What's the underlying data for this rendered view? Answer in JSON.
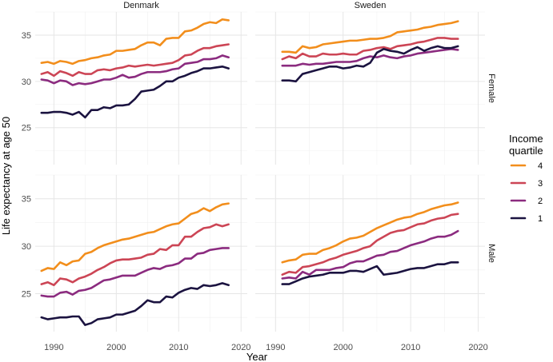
{
  "chart_data": {
    "type": "line",
    "facet_columns": [
      "Denmark",
      "Sweden"
    ],
    "facet_rows": [
      "Female",
      "Male"
    ],
    "xlabel": "Year",
    "ylabel": "Life expectancy at age 50",
    "xlim": [
      1987,
      2021
    ],
    "ylim": [
      21,
      37.5
    ],
    "x_ticks": [
      1990,
      2000,
      2010,
      2020
    ],
    "y_ticks": [
      25,
      30,
      35
    ],
    "grid": true,
    "legend": {
      "title": [
        "Income",
        "quartile"
      ],
      "position": "right",
      "entries": [
        {
          "label": "4",
          "color": "#f28e1c"
        },
        {
          "label": "3",
          "color": "#cc4555"
        },
        {
          "label": "2",
          "color": "#8b2b7f"
        },
        {
          "label": "1",
          "color": "#1b1340"
        }
      ]
    },
    "panels": [
      {
        "column": "Denmark",
        "row": "Female",
        "x": [
          1988,
          1989,
          1990,
          1991,
          1992,
          1993,
          1994,
          1995,
          1996,
          1997,
          1998,
          1999,
          2000,
          2001,
          2002,
          2003,
          2004,
          2005,
          2006,
          2007,
          2008,
          2009,
          2010,
          2011,
          2012,
          2013,
          2014,
          2015,
          2016,
          2017,
          2018
        ],
        "series": [
          {
            "name": "4",
            "color": "#f28e1c",
            "values": [
              32.0,
              32.1,
              31.9,
              32.2,
              32.1,
              31.9,
              32.2,
              32.3,
              32.5,
              32.6,
              32.8,
              32.9,
              33.3,
              33.3,
              33.4,
              33.5,
              33.9,
              34.2,
              34.2,
              33.9,
              34.6,
              34.7,
              34.7,
              35.4,
              35.5,
              35.8,
              36.2,
              36.4,
              36.3,
              36.7,
              36.6
            ]
          },
          {
            "name": "3",
            "color": "#cc4555",
            "values": [
              30.8,
              31.0,
              30.6,
              31.1,
              30.9,
              30.6,
              31.0,
              30.8,
              30.8,
              31.2,
              31.3,
              31.2,
              31.4,
              31.5,
              31.7,
              31.6,
              31.7,
              31.8,
              31.7,
              31.8,
              31.9,
              32.0,
              32.3,
              32.8,
              32.9,
              33.3,
              33.6,
              33.6,
              33.8,
              33.9,
              34.0
            ]
          },
          {
            "name": "2",
            "color": "#8b2b7f",
            "values": [
              30.2,
              30.1,
              29.8,
              30.1,
              30.0,
              29.6,
              29.8,
              29.7,
              29.8,
              30.0,
              30.2,
              30.2,
              30.4,
              30.7,
              30.4,
              30.5,
              30.8,
              31.0,
              31.0,
              31.0,
              31.1,
              31.3,
              31.4,
              31.9,
              32.0,
              32.1,
              32.4,
              32.4,
              32.5,
              32.8,
              32.6
            ]
          },
          {
            "name": "1",
            "color": "#1b1340",
            "values": [
              26.6,
              26.6,
              26.7,
              26.7,
              26.6,
              26.4,
              26.7,
              26.1,
              26.9,
              26.9,
              27.2,
              27.1,
              27.4,
              27.4,
              27.5,
              28.1,
              28.9,
              29.0,
              29.1,
              29.5,
              30.0,
              30.0,
              30.4,
              30.6,
              30.9,
              31.1,
              31.4,
              31.4,
              31.5,
              31.6,
              31.4
            ]
          }
        ]
      },
      {
        "column": "Sweden",
        "row": "Female",
        "x": [
          1991,
          1992,
          1993,
          1994,
          1995,
          1996,
          1997,
          1998,
          1999,
          2000,
          2001,
          2002,
          2003,
          2004,
          2005,
          2006,
          2007,
          2008,
          2009,
          2010,
          2011,
          2012,
          2013,
          2014,
          2015,
          2016,
          2017
        ],
        "series": [
          {
            "name": "4",
            "color": "#f28e1c",
            "values": [
              33.2,
              33.2,
              33.1,
              33.8,
              33.6,
              33.7,
              34.0,
              34.1,
              34.2,
              34.3,
              34.4,
              34.4,
              34.5,
              34.6,
              34.6,
              34.7,
              34.9,
              35.3,
              35.4,
              35.5,
              35.6,
              35.8,
              35.9,
              36.1,
              36.2,
              36.3,
              36.5
            ]
          },
          {
            "name": "3",
            "color": "#cc4555",
            "values": [
              32.4,
              32.7,
              32.5,
              33.0,
              32.7,
              32.7,
              33.0,
              32.9,
              32.9,
              33.0,
              32.9,
              32.9,
              33.3,
              33.4,
              33.6,
              33.7,
              33.5,
              33.8,
              33.9,
              34.0,
              34.2,
              34.3,
              34.5,
              34.7,
              34.7,
              34.6,
              34.6
            ]
          },
          {
            "name": "2",
            "color": "#8b2b7f",
            "values": [
              31.7,
              31.7,
              31.7,
              31.9,
              31.8,
              31.9,
              31.9,
              32.0,
              32.1,
              32.1,
              32.1,
              32.2,
              32.5,
              32.7,
              32.6,
              32.8,
              32.6,
              32.5,
              32.7,
              32.8,
              33.0,
              33.1,
              33.2,
              33.3,
              33.4,
              33.5,
              33.4
            ]
          },
          {
            "name": "1",
            "color": "#1b1340",
            "values": [
              30.1,
              30.1,
              30.0,
              30.8,
              31.0,
              31.2,
              31.4,
              31.6,
              31.6,
              31.4,
              31.5,
              31.7,
              31.6,
              32.0,
              33.1,
              33.5,
              33.3,
              33.2,
              33.0,
              33.4,
              33.7,
              33.3,
              33.6,
              33.8,
              33.6,
              33.6,
              33.8
            ]
          }
        ]
      },
      {
        "column": "Denmark",
        "row": "Male",
        "x": [
          1988,
          1989,
          1990,
          1991,
          1992,
          1993,
          1994,
          1995,
          1996,
          1997,
          1998,
          1999,
          2000,
          2001,
          2002,
          2003,
          2004,
          2005,
          2006,
          2007,
          2008,
          2009,
          2010,
          2011,
          2012,
          2013,
          2014,
          2015,
          2016,
          2017,
          2018
        ],
        "series": [
          {
            "name": "4",
            "color": "#f28e1c",
            "values": [
              27.4,
              27.7,
              27.6,
              28.3,
              28.0,
              28.4,
              28.5,
              29.2,
              29.4,
              29.8,
              30.1,
              30.3,
              30.5,
              30.7,
              30.8,
              31.0,
              31.2,
              31.4,
              31.5,
              31.8,
              32.1,
              32.3,
              32.4,
              32.9,
              33.4,
              33.6,
              34.0,
              33.7,
              34.1,
              34.4,
              34.5
            ]
          },
          {
            "name": "3",
            "color": "#cc4555",
            "values": [
              26.0,
              26.2,
              25.9,
              26.6,
              26.5,
              26.2,
              26.6,
              26.8,
              27.1,
              27.5,
              27.8,
              28.2,
              28.5,
              28.6,
              28.6,
              28.7,
              28.8,
              29.1,
              29.2,
              29.7,
              29.6,
              30.1,
              30.1,
              31.0,
              31.0,
              31.5,
              31.9,
              32.0,
              32.3,
              32.1,
              32.3
            ]
          },
          {
            "name": "2",
            "color": "#8b2b7f",
            "values": [
              24.8,
              24.7,
              24.7,
              25.1,
              25.2,
              24.9,
              25.3,
              25.4,
              25.6,
              26.0,
              26.4,
              26.5,
              26.7,
              26.9,
              26.9,
              26.9,
              27.2,
              27.5,
              27.7,
              27.6,
              27.9,
              28.0,
              28.2,
              28.7,
              28.7,
              29.2,
              29.3,
              29.6,
              29.7,
              29.8,
              29.8
            ]
          },
          {
            "name": "1",
            "color": "#1b1340",
            "values": [
              22.5,
              22.3,
              22.4,
              22.5,
              22.5,
              22.6,
              22.6,
              21.7,
              21.9,
              22.3,
              22.4,
              22.5,
              22.8,
              22.8,
              23.0,
              23.2,
              23.7,
              24.3,
              24.1,
              24.1,
              24.7,
              24.6,
              25.1,
              25.4,
              25.6,
              25.5,
              25.9,
              25.8,
              25.9,
              26.1,
              25.9
            ]
          }
        ]
      },
      {
        "column": "Sweden",
        "row": "Male",
        "x": [
          1991,
          1992,
          1993,
          1994,
          1995,
          1996,
          1997,
          1998,
          1999,
          2000,
          2001,
          2002,
          2003,
          2004,
          2005,
          2006,
          2007,
          2008,
          2009,
          2010,
          2011,
          2012,
          2013,
          2014,
          2015,
          2016,
          2017
        ],
        "series": [
          {
            "name": "4",
            "color": "#f28e1c",
            "values": [
              28.3,
              28.5,
              28.6,
              29.1,
              29.2,
              29.2,
              29.6,
              29.8,
              30.1,
              30.5,
              30.8,
              30.9,
              31.1,
              31.5,
              31.9,
              32.2,
              32.5,
              32.8,
              33.0,
              33.1,
              33.4,
              33.6,
              33.9,
              34.1,
              34.3,
              34.4,
              34.6
            ]
          },
          {
            "name": "3",
            "color": "#cc4555",
            "values": [
              27.0,
              27.3,
              27.2,
              27.8,
              27.9,
              28.1,
              28.3,
              28.6,
              28.8,
              29.1,
              29.3,
              29.5,
              29.8,
              30.0,
              30.6,
              31.0,
              31.4,
              31.6,
              31.7,
              32.0,
              32.3,
              32.4,
              32.7,
              32.9,
              33.0,
              33.3,
              33.4
            ]
          },
          {
            "name": "2",
            "color": "#8b2b7f",
            "values": [
              26.6,
              26.7,
              26.6,
              27.3,
              27.0,
              27.5,
              27.5,
              27.5,
              27.7,
              27.8,
              28.2,
              28.4,
              28.4,
              28.7,
              29.0,
              29.1,
              29.4,
              29.5,
              29.8,
              30.1,
              30.3,
              30.5,
              30.8,
              31.0,
              31.0,
              31.2,
              31.6
            ]
          },
          {
            "name": "1",
            "color": "#1b1340",
            "values": [
              26.0,
              26.0,
              26.3,
              26.6,
              26.8,
              26.9,
              27.0,
              27.2,
              27.2,
              27.2,
              27.4,
              27.4,
              27.3,
              27.6,
              27.9,
              27.0,
              27.1,
              27.2,
              27.4,
              27.6,
              27.7,
              27.7,
              27.9,
              28.1,
              28.1,
              28.3,
              28.3
            ]
          }
        ]
      }
    ]
  }
}
